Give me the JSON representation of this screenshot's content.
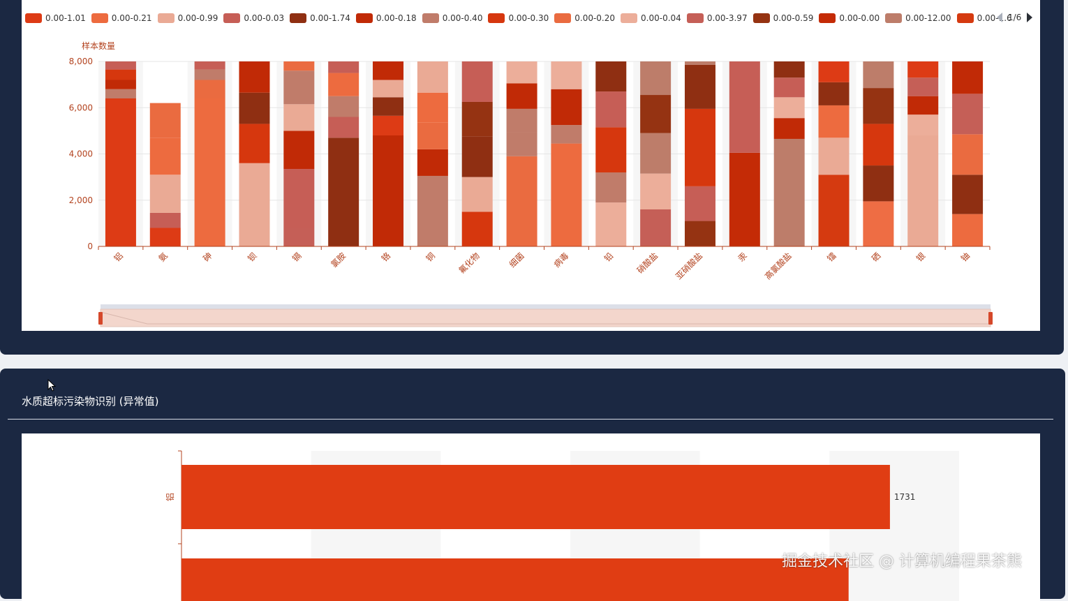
{
  "legend": {
    "items": [
      "0.00-1.01",
      "0.00-0.21",
      "0.00-0.99",
      "0.00-0.03",
      "0.00-1.74",
      "0.00-0.18",
      "0.00-0.40",
      "0.00-0.30",
      "0.00-0.20",
      "0.00-0.04",
      "0.00-3.97",
      "0.00-0.59",
      "0.00-0.00",
      "0.00-12.00",
      "0.00-1.60",
      ""
    ],
    "colors": [
      "#dd3b15",
      "#ed6b3f",
      "#eaaa95",
      "#c65e56",
      "#8f2f12",
      "#c12a06",
      "#c07c6a",
      "#d6370e",
      "#ea6b40",
      "#ecae9a",
      "#c55f57",
      "#953312",
      "#c42b06",
      "#bd7d6a",
      "#d53a10",
      "#ee6d44"
    ],
    "page": "1/6"
  },
  "chart_data": [
    {
      "type": "bar",
      "stacked": true,
      "ylabel": "样本数量",
      "ylim": [
        0,
        8000
      ],
      "y_ticks": [
        "0",
        "2,000",
        "4,000",
        "6,000",
        "8,000"
      ],
      "categories": [
        "铝",
        "氨",
        "砷",
        "钡",
        "镉",
        "氯胺",
        "铬",
        "铜",
        "氟化物",
        "细菌",
        "病毒",
        "铅",
        "硝酸盐",
        "亚硝酸盐",
        "汞",
        "高氯酸盐",
        "镭",
        "硒",
        "银",
        "铀"
      ],
      "segments": [
        [
          [
            6400,
            0
          ],
          [
            400,
            6
          ],
          [
            400,
            5
          ],
          [
            450,
            7
          ],
          [
            350,
            3
          ]
        ],
        [
          [
            800,
            0
          ],
          [
            650,
            3
          ],
          [
            1650,
            2
          ],
          [
            1600,
            1
          ],
          [
            1500,
            8
          ]
        ],
        [
          [
            6400,
            1
          ],
          [
            800,
            8
          ],
          [
            450,
            6
          ],
          [
            350,
            3
          ]
        ],
        [
          [
            3600,
            2
          ],
          [
            1700,
            7
          ],
          [
            1350,
            4
          ],
          [
            1350,
            5
          ]
        ],
        [
          [
            800,
            10
          ],
          [
            2550,
            3
          ],
          [
            1650,
            5
          ],
          [
            1150,
            2
          ],
          [
            1450,
            6
          ],
          [
            400,
            8
          ]
        ],
        [
          [
            4700,
            4
          ],
          [
            900,
            3
          ],
          [
            900,
            6
          ],
          [
            1000,
            1
          ],
          [
            500,
            3
          ]
        ],
        [
          [
            4800,
            5
          ],
          [
            850,
            0
          ],
          [
            800,
            4
          ],
          [
            750,
            2
          ],
          [
            800,
            5
          ]
        ],
        [
          [
            3050,
            6
          ],
          [
            1150,
            5
          ],
          [
            1150,
            8
          ],
          [
            1300,
            1
          ],
          [
            1350,
            2
          ]
        ],
        [
          [
            1500,
            7
          ],
          [
            1500,
            2
          ],
          [
            1750,
            4
          ],
          [
            1500,
            11
          ],
          [
            1750,
            3
          ]
        ],
        [
          [
            3900,
            8
          ],
          [
            1050,
            6
          ],
          [
            1000,
            6
          ],
          [
            1100,
            5
          ],
          [
            950,
            9
          ]
        ],
        [
          [
            4450,
            1
          ],
          [
            800,
            6
          ],
          [
            1550,
            5
          ],
          [
            1200,
            9
          ]
        ],
        [
          [
            1900,
            9
          ],
          [
            1300,
            6
          ],
          [
            1950,
            7
          ],
          [
            1550,
            3
          ],
          [
            1300,
            4
          ]
        ],
        [
          [
            1600,
            10
          ],
          [
            1550,
            9
          ],
          [
            1750,
            13
          ],
          [
            1650,
            11
          ],
          [
            1450,
            13
          ]
        ],
        [
          [
            1100,
            11
          ],
          [
            1500,
            3
          ],
          [
            3350,
            7
          ],
          [
            1900,
            4
          ],
          [
            150,
            13
          ]
        ],
        [
          [
            4050,
            12
          ],
          [
            3950,
            3
          ]
        ],
        [
          [
            4650,
            13
          ],
          [
            900,
            5
          ],
          [
            900,
            9
          ],
          [
            850,
            3
          ],
          [
            700,
            4
          ]
        ],
        [
          [
            3100,
            14
          ],
          [
            1600,
            2
          ],
          [
            1400,
            1
          ],
          [
            1000,
            4
          ],
          [
            900,
            0
          ]
        ],
        [
          [
            1950,
            15
          ],
          [
            1550,
            4
          ],
          [
            1800,
            7
          ],
          [
            1550,
            11
          ],
          [
            1150,
            13
          ]
        ],
        [
          [
            4800,
            2
          ],
          [
            900,
            9
          ],
          [
            800,
            5
          ],
          [
            800,
            10
          ],
          [
            700,
            0
          ]
        ],
        [
          [
            1400,
            1
          ],
          [
            1700,
            4
          ],
          [
            1750,
            8
          ],
          [
            1750,
            10
          ],
          [
            1400,
            5
          ]
        ]
      ]
    },
    {
      "type": "bar",
      "orientation": "horizontal",
      "categories": [
        "铝",
        ""
      ],
      "values": [
        1731,
        1630
      ],
      "data_labels": [
        "1731",
        ""
      ],
      "xlim": [
        0,
        1900
      ],
      "color": "#e03d13"
    }
  ],
  "panel2": {
    "title": "水质超标污染物识别 (异常值)"
  },
  "watermark": "掘金技术社区 @ 计算机编程果茶熊"
}
